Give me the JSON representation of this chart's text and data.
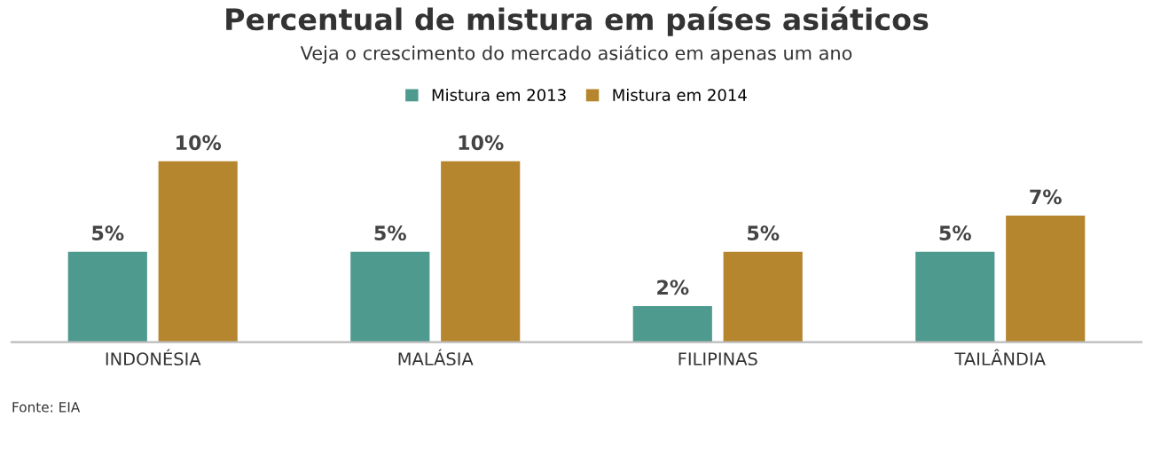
{
  "chart_data": {
    "type": "bar",
    "title": "Percentual de mistura em países asiáticos",
    "subtitle": "Veja o crescimento do mercado asiático em apenas um ano",
    "categories": [
      "INDONÉSIA",
      "MALÁSIA",
      "FILIPINAS",
      "TAILÂNDIA"
    ],
    "series": [
      {
        "name": "Mistura em 2013",
        "color": "#4e9a8f",
        "values": [
          5,
          5,
          2,
          5
        ],
        "value_labels": [
          "5%",
          "5%",
          "2%",
          "5%"
        ]
      },
      {
        "name": "Mistura em 2014",
        "color": "#b5862e",
        "values": [
          10,
          10,
          5,
          7
        ],
        "value_labels": [
          "10%",
          "10%",
          "5%",
          "7%"
        ]
      }
    ],
    "legend": "top",
    "grid": false,
    "annotations": [
      "Fonte: EIA"
    ]
  }
}
